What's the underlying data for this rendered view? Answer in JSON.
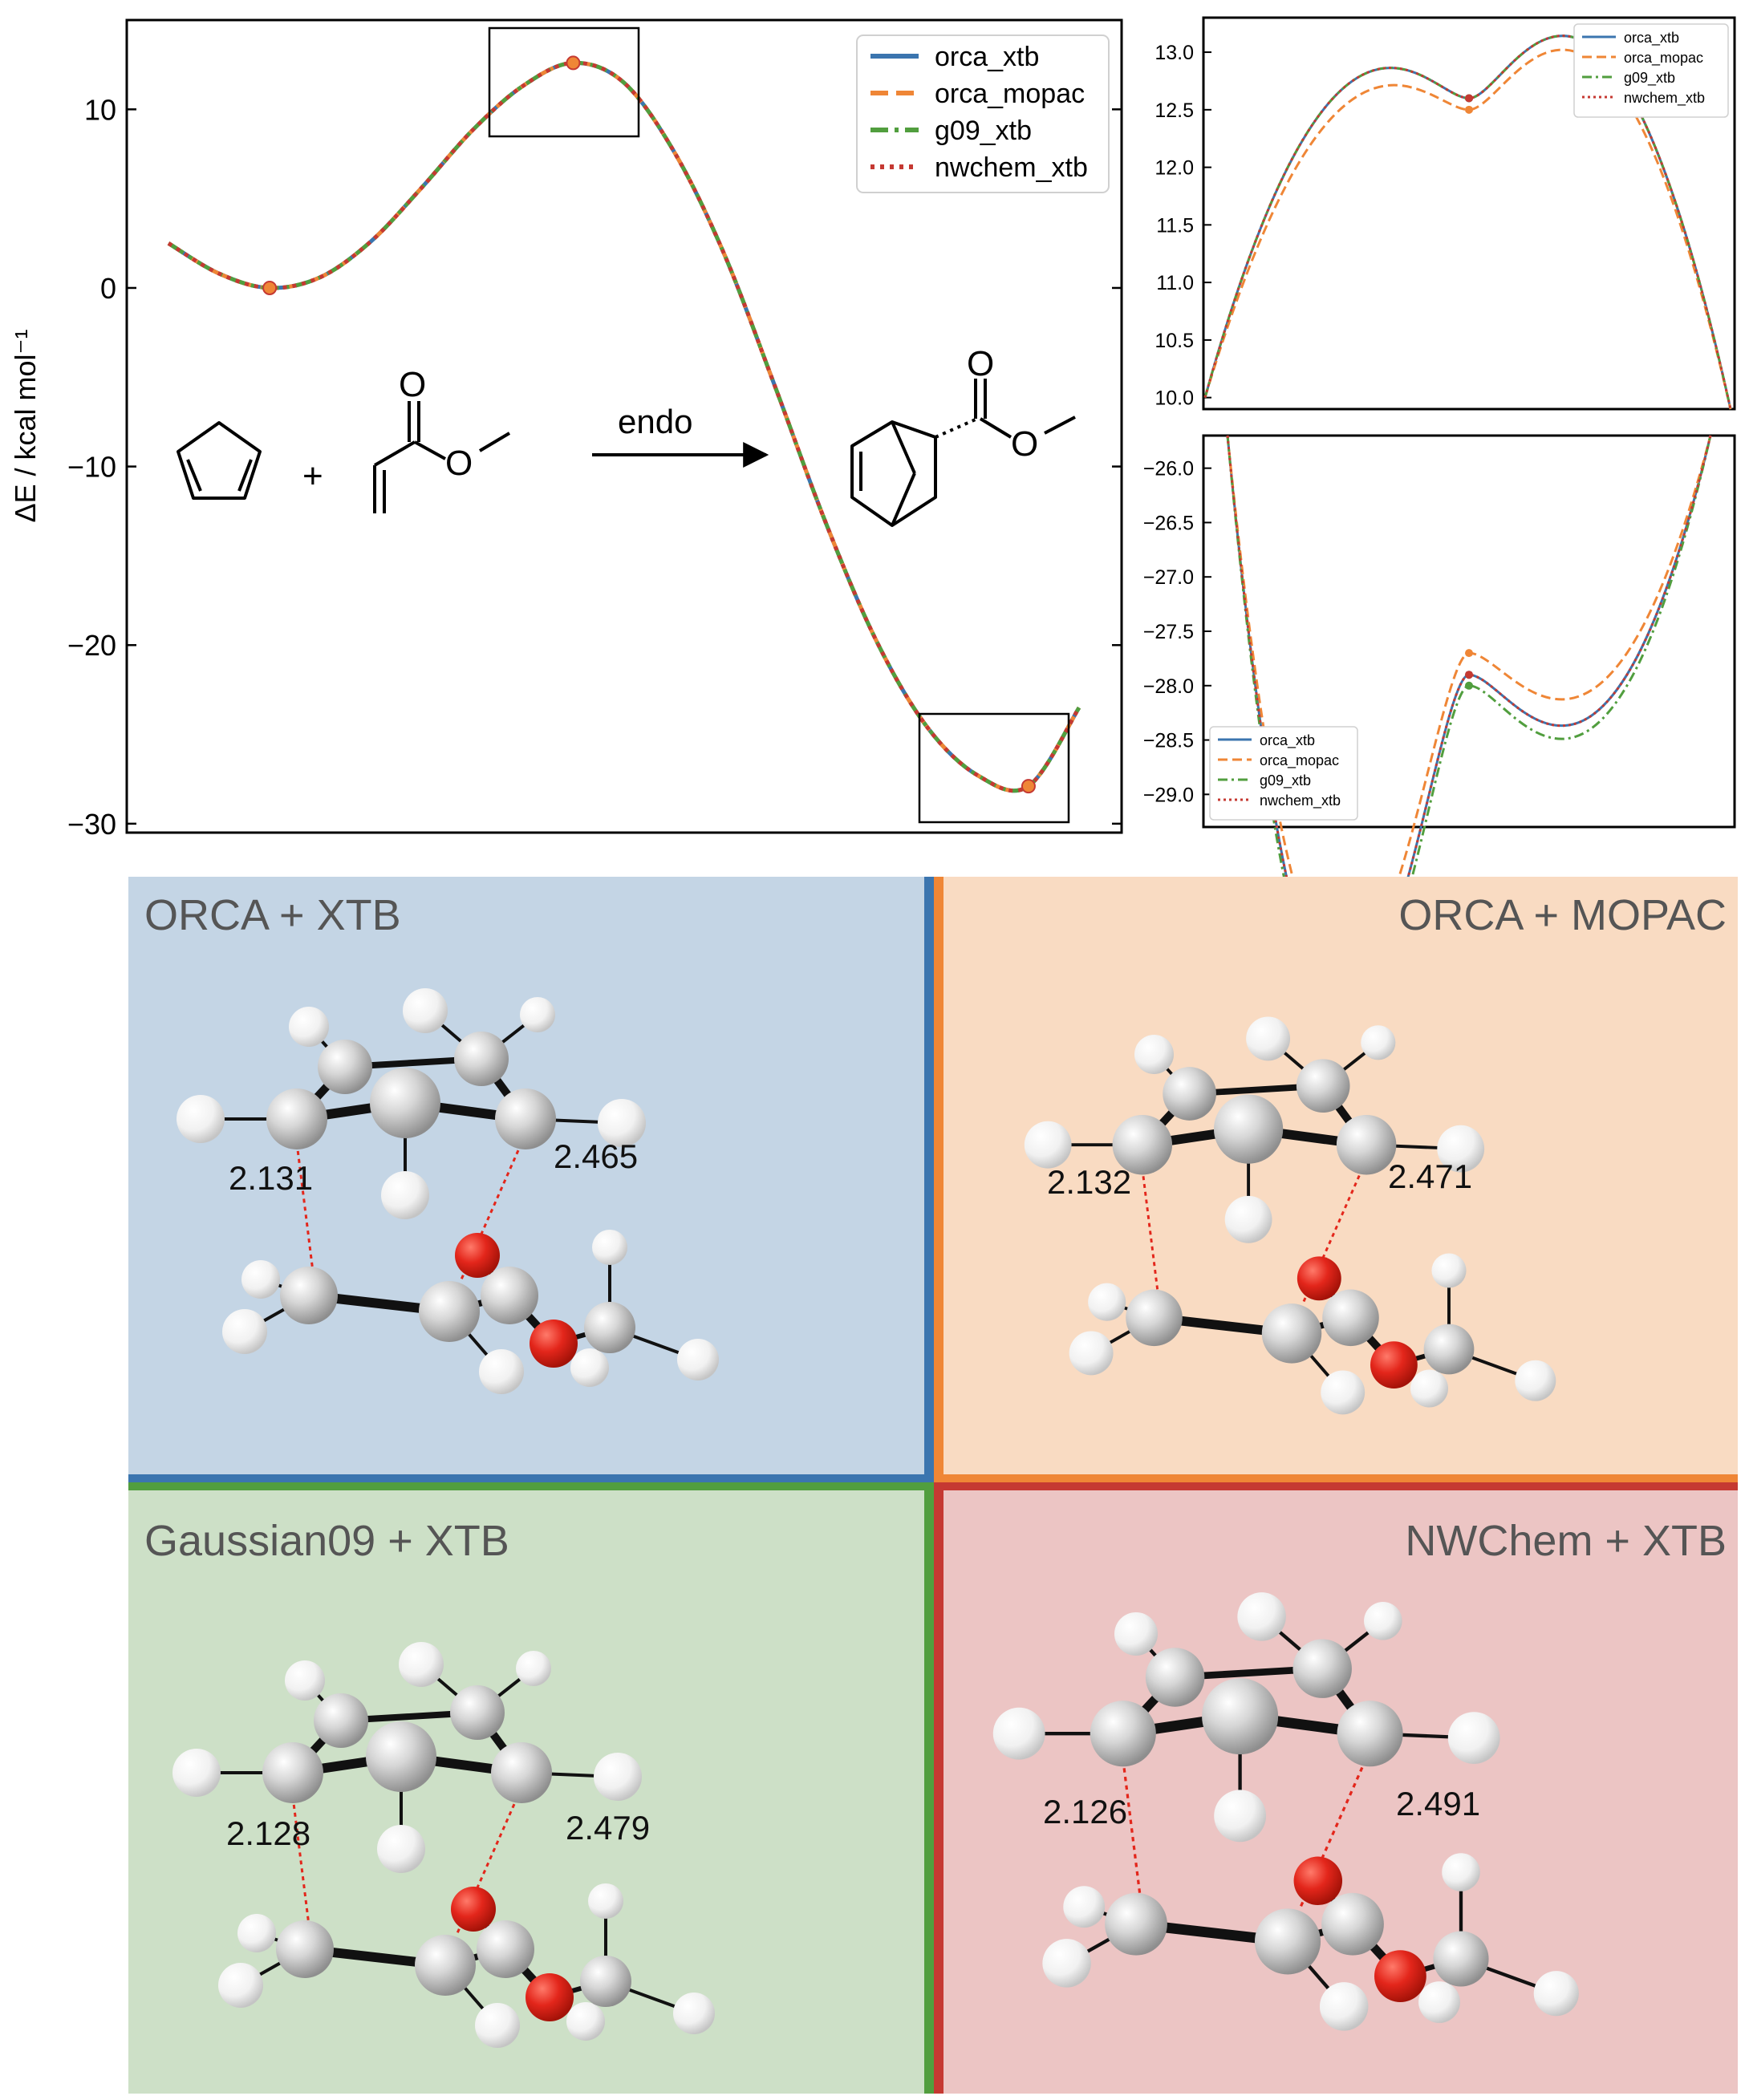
{
  "chart_data": [
    {
      "type": "line",
      "title": "",
      "xlabel": "",
      "ylabel": "ΔE / kcal mol⁻¹",
      "ylim": [
        -30.5,
        15
      ],
      "yticks": [
        -30,
        -20,
        -10,
        0,
        10
      ],
      "grid": false,
      "legend_position": "top-right",
      "series": [
        {
          "name": "orca_xtb",
          "color": "#3b75af",
          "style": "solid"
        },
        {
          "name": "orca_mopac",
          "color": "#ef8636",
          "style": "dashed"
        },
        {
          "name": "g09_xtb",
          "color": "#519e3e",
          "style": "dashdot"
        },
        {
          "name": "nwchem_xtb",
          "color": "#c53932",
          "style": "dotted"
        }
      ],
      "x": [
        0.0,
        0.5,
        1.0,
        1.5,
        2.0,
        2.5,
        3.0,
        3.5,
        4.0,
        4.5,
        5.0,
        5.5,
        6.0,
        6.5,
        7.0,
        7.5,
        8.0,
        8.5,
        9.0
      ],
      "y": [
        2.5,
        0.8,
        0.0,
        0.6,
        2.6,
        5.6,
        8.8,
        11.3,
        12.6,
        11.5,
        7.6,
        1.8,
        -5.6,
        -13.2,
        -19.8,
        -24.6,
        -27.3,
        -27.9,
        -23.5
      ],
      "markers": [
        {
          "label": "reactant minimum",
          "y": 0.0
        },
        {
          "label": "transition state",
          "y": 12.6
        },
        {
          "label": "product minimum",
          "y": -27.9
        }
      ],
      "annotations": {
        "arrow_label": "endo",
        "reaction": "cyclopentadiene + methyl acrylate → endo norbornene ester"
      }
    },
    {
      "type": "line",
      "title": "",
      "region": "transition state (zoom)",
      "ylim": [
        9.9,
        13.3
      ],
      "yticks": [
        10.0,
        10.5,
        11.0,
        11.5,
        12.0,
        12.5,
        13.0
      ],
      "legend_position": "top-right",
      "series": [
        {
          "name": "orca_xtb",
          "peak": 12.6,
          "color": "#3b75af",
          "style": "solid"
        },
        {
          "name": "orca_mopac",
          "peak": 12.5,
          "color": "#ef8636",
          "style": "dashed"
        },
        {
          "name": "g09_xtb",
          "peak": 12.6,
          "color": "#519e3e",
          "style": "dashdot"
        },
        {
          "name": "nwchem_xtb",
          "peak": 12.6,
          "color": "#c53932",
          "style": "dotted"
        }
      ]
    },
    {
      "type": "line",
      "title": "",
      "region": "product minimum (zoom)",
      "ylim": [
        -29.3,
        -25.7
      ],
      "yticks": [
        -26.0,
        -26.5,
        -27.0,
        -27.5,
        -28.0,
        -28.5,
        -29.0
      ],
      "legend_position": "bottom-left",
      "series": [
        {
          "name": "orca_xtb",
          "min": -27.9,
          "color": "#3b75af",
          "style": "solid"
        },
        {
          "name": "orca_mopac",
          "min": -27.7,
          "color": "#ef8636",
          "style": "dashed"
        },
        {
          "name": "g09_xtb",
          "min": -28.0,
          "color": "#519e3e",
          "style": "dashdot"
        },
        {
          "name": "nwchem_xtb",
          "min": -27.9,
          "color": "#c53932",
          "style": "dotted"
        }
      ]
    }
  ],
  "panels": [
    {
      "label": "ORCA + XTB",
      "bg": "#c4d5e5",
      "accent": "#3b75af",
      "dist_left": "2.131",
      "dist_right": "2.465"
    },
    {
      "label": "ORCA + MOPAC",
      "bg": "#f9dbc2",
      "accent": "#ef8636",
      "dist_left": "2.132",
      "dist_right": "2.471"
    },
    {
      "label": "Gaussian09 + XTB",
      "bg": "#cde0c7",
      "accent": "#519e3e",
      "dist_left": "2.128",
      "dist_right": "2.479"
    },
    {
      "label": "NWChem + XTB",
      "bg": "#ecc5c4",
      "accent": "#c53932",
      "dist_left": "2.126",
      "dist_right": "2.491"
    }
  ],
  "reaction": {
    "arrow_label": "endo",
    "atom_o": "O"
  }
}
